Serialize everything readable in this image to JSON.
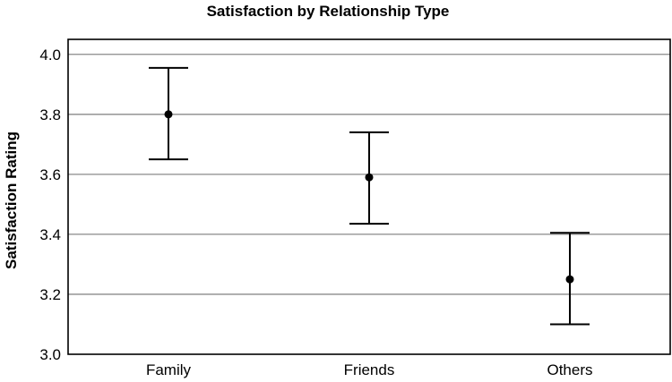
{
  "chart_data": {
    "type": "errorbar",
    "title": "Satisfaction by Relationship Type",
    "xlabel": "",
    "ylabel": "Satisfaction Rating",
    "categories": [
      "Family",
      "Friends",
      "Others"
    ],
    "means": [
      3.8,
      3.59,
      3.25
    ],
    "lower": [
      3.65,
      3.435,
      3.1
    ],
    "upper": [
      3.955,
      3.74,
      3.405
    ],
    "ylim": [
      3.0,
      4.05
    ],
    "yticks": [
      3.0,
      3.2,
      3.4,
      3.6,
      3.8,
      4.0
    ],
    "ytick_labels": [
      "3.0",
      "3.2",
      "3.4",
      "3.6",
      "3.8",
      "4.0"
    ],
    "grid": true,
    "colors": {
      "marker": "#000000",
      "grid": "#8a8a8a",
      "frame": "#000000"
    }
  }
}
